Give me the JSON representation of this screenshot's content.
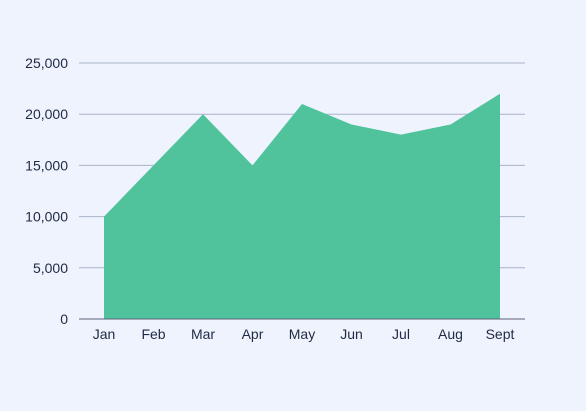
{
  "chart_data": {
    "type": "area",
    "title": "",
    "xlabel": "",
    "ylabel": "",
    "categories": [
      "Jan",
      "Feb",
      "Mar",
      "Apr",
      "May",
      "Jun",
      "Jul",
      "Aug",
      "Sept"
    ],
    "values": [
      10000,
      15000,
      20000,
      15000,
      21000,
      19000,
      18000,
      19000,
      22000
    ],
    "ylim": [
      0,
      25000
    ],
    "yticks": [
      0,
      5000,
      10000,
      15000,
      20000,
      25000
    ],
    "ytick_labels": [
      "0",
      "5,000",
      "10,000",
      "15,000",
      "20,000",
      "25,000"
    ],
    "grid": true,
    "legend": "none",
    "colors": {
      "area": "#50c39d",
      "grid": "#a9b3c7",
      "axis": "#5a6275",
      "text": "#1f2a44",
      "background": "#eef3fd"
    }
  }
}
